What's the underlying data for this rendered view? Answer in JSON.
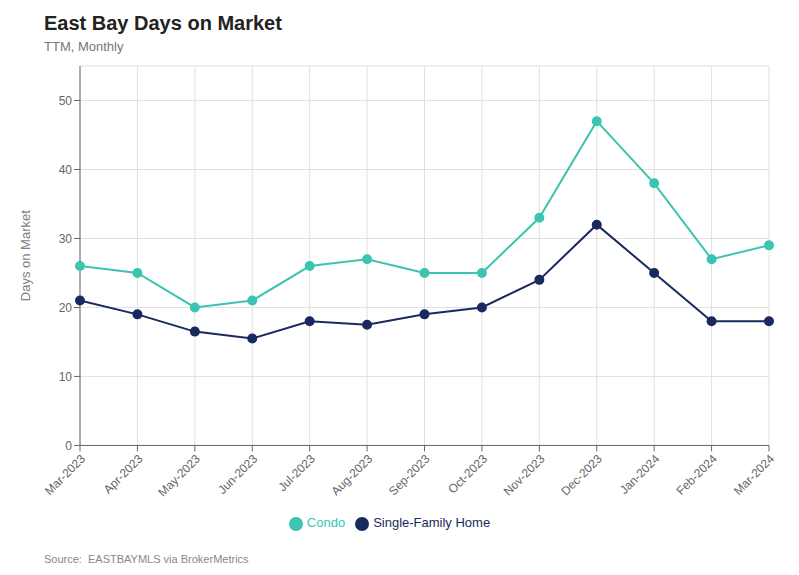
{
  "chart_data": {
    "type": "line",
    "title": "East Bay Days on Market",
    "subtitle": "TTM, Monthly",
    "y_label": "Days on Market",
    "source": "Source:  EASTBAYMLS via BrokerMetrics",
    "categories": [
      "Mar-2023",
      "Apr-2023",
      "May-2023",
      "Jun-2023",
      "Jul-2023",
      "Aug-2023",
      "Sep-2023",
      "Oct-2023",
      "Nov-2023",
      "Dec-2023",
      "Jan-2024",
      "Feb-2024",
      "Mar-2024"
    ],
    "series": [
      {
        "name": "Single-Family Home",
        "color": "#1a2a5e",
        "marker": "circle",
        "values": [
          21,
          19,
          16.5,
          15.5,
          18,
          17.5,
          19,
          20,
          24,
          32,
          25,
          18,
          18
        ]
      },
      {
        "name": "Condo",
        "color": "#3cc4b0",
        "marker": "circle",
        "values": [
          26,
          25,
          20,
          21,
          26,
          27,
          25,
          25,
          33,
          47,
          38,
          27,
          29
        ]
      }
    ],
    "ylim": [
      0,
      55
    ],
    "yticks": [
      0,
      10,
      20,
      30,
      40,
      50
    ],
    "grid": true,
    "legend": "bottom"
  }
}
